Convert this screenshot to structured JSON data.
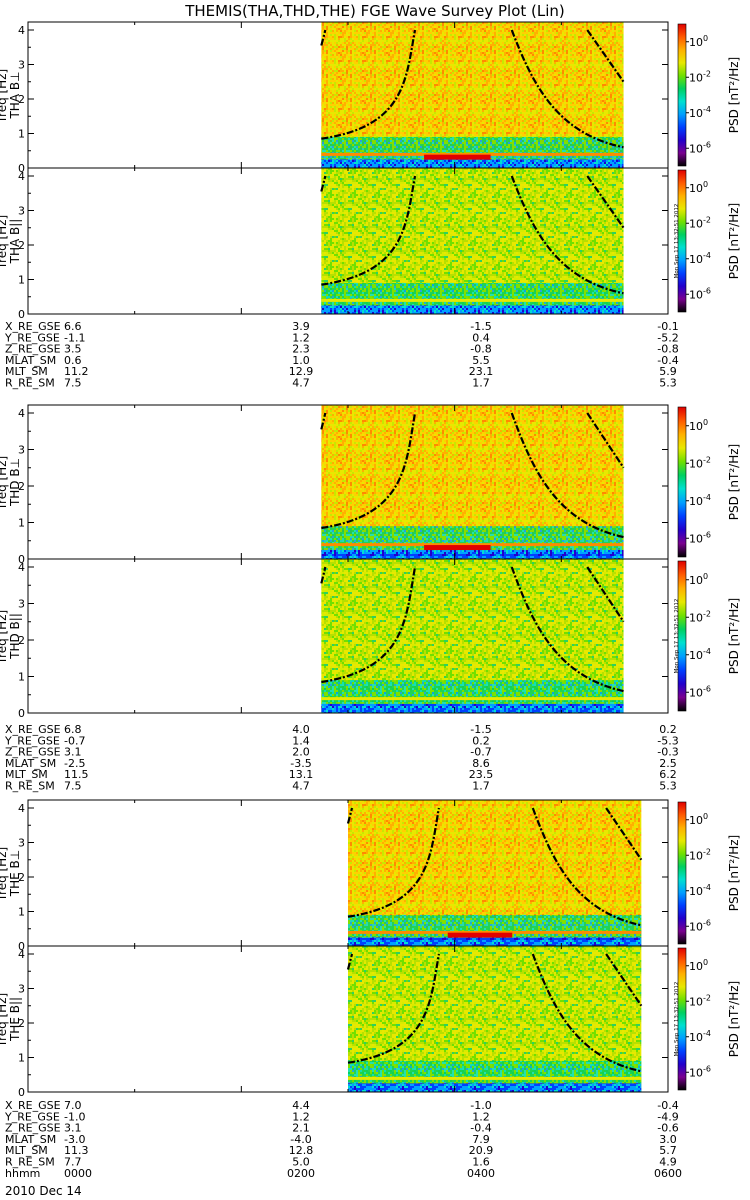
{
  "title": "THEMIS(THA,THD,THE) FGE Wave Survey Plot (Lin)",
  "colors": {
    "ramp": [
      "#000000",
      "#7a0090",
      "#2200cc",
      "#0040ff",
      "#00a0ff",
      "#00e0d0",
      "#00d060",
      "#70e000",
      "#e8e800",
      "#ffb000",
      "#ff5a00",
      "#e00000"
    ]
  },
  "colorbar": {
    "label": "PSD [nT²/Hz]",
    "ticks": [
      {
        "base": "10",
        "exp": "0",
        "value": 0
      },
      {
        "base": "10",
        "exp": "-2",
        "value": -2
      },
      {
        "base": "10",
        "exp": "-4",
        "value": -4
      },
      {
        "base": "10",
        "exp": "-6",
        "value": -6
      }
    ],
    "range": [
      -7,
      1
    ],
    "stamp": "Mon Sep 17 13:32:51 2012"
  },
  "chart_data": [
    {
      "type": "heatmap",
      "probe": "THA",
      "component": "THA B⊥",
      "ylabel": "freq [Hz]",
      "ylim": [
        0,
        4
      ],
      "yticks": [
        "0",
        "1",
        "2",
        "3",
        "4"
      ],
      "x_data_range": [
        "0245",
        "0535"
      ],
      "level": "strong"
    },
    {
      "type": "heatmap",
      "probe": "THA",
      "component": "THA B||",
      "ylabel": "freq [Hz]",
      "ylim": [
        0,
        4
      ],
      "yticks": [
        "0",
        "1",
        "2",
        "3",
        "4"
      ],
      "x_data_range": [
        "0245",
        "0535"
      ],
      "level": "weak"
    },
    {
      "type": "heatmap",
      "probe": "THD",
      "component": "THD B⊥",
      "ylabel": "freq [Hz]",
      "ylim": [
        0,
        4
      ],
      "yticks": [
        "0",
        "1",
        "2",
        "3",
        "4"
      ],
      "x_data_range": [
        "0245",
        "0535"
      ],
      "level": "strong"
    },
    {
      "type": "heatmap",
      "probe": "THD",
      "component": "THD B||",
      "ylabel": "freq [Hz]",
      "ylim": [
        0,
        4
      ],
      "yticks": [
        "0",
        "1",
        "2",
        "3",
        "4"
      ],
      "x_data_range": [
        "0245",
        "0535"
      ],
      "level": "weak"
    },
    {
      "type": "heatmap",
      "probe": "THE",
      "component": "THE B⊥",
      "ylabel": "freq [Hz]",
      "ylim": [
        0,
        4
      ],
      "yticks": [
        "0",
        "1",
        "2",
        "3",
        "4"
      ],
      "x_data_range": [
        "0300",
        "0545"
      ],
      "level": "strong"
    },
    {
      "type": "heatmap",
      "probe": "THE",
      "component": "THE B||",
      "ylabel": "freq [Hz]",
      "ylim": [
        0,
        4
      ],
      "yticks": [
        "0",
        "1",
        "2",
        "3",
        "4"
      ],
      "x_data_range": [
        "0300",
        "0545"
      ],
      "level": "weak"
    }
  ],
  "ephemeris_blocks": [
    {
      "rows": [
        {
          "label": "X_RE_GSE",
          "values": [
            "6.6",
            "3.9",
            "-1.5",
            "-0.1"
          ]
        },
        {
          "label": "Y_RE_GSE",
          "values": [
            "-1.1",
            "1.2",
            "0.4",
            "-5.2"
          ]
        },
        {
          "label": "Z_RE_GSE",
          "values": [
            "3.5",
            "2.3",
            "-0.8",
            "-0.8"
          ]
        },
        {
          "label": "MLAT_SM",
          "values": [
            "0.6",
            "1.0",
            "5.5",
            "-0.4"
          ]
        },
        {
          "label": "MLT_SM",
          "values": [
            "11.2",
            "12.9",
            "23.1",
            "5.9"
          ]
        },
        {
          "label": "R_RE_SM",
          "values": [
            "7.5",
            "4.7",
            "1.7",
            "5.3"
          ]
        }
      ]
    },
    {
      "rows": [
        {
          "label": "X_RE_GSE",
          "values": [
            "6.8",
            "4.0",
            "-1.5",
            "0.2"
          ]
        },
        {
          "label": "Y_RE_GSE",
          "values": [
            "-0.7",
            "1.4",
            "0.2",
            "-5.3"
          ]
        },
        {
          "label": "Z_RE_GSE",
          "values": [
            "3.1",
            "2.0",
            "-0.7",
            "-0.3"
          ]
        },
        {
          "label": "MLAT_SM",
          "values": [
            "-2.5",
            "-3.5",
            "8.6",
            "2.5"
          ]
        },
        {
          "label": "MLT_SM",
          "values": [
            "11.5",
            "13.1",
            "23.5",
            "6.2"
          ]
        },
        {
          "label": "R_RE_SM",
          "values": [
            "7.5",
            "4.7",
            "1.7",
            "5.3"
          ]
        }
      ]
    },
    {
      "rows": [
        {
          "label": "X_RE_GSE",
          "values": [
            "7.0",
            "4.4",
            "-1.0",
            "-0.4"
          ]
        },
        {
          "label": "Y_RE_GSE",
          "values": [
            "-1.0",
            "1.2",
            "1.2",
            "-4.9"
          ]
        },
        {
          "label": "Z_RE_GSE",
          "values": [
            "3.1",
            "2.1",
            "-0.4",
            "-0.6"
          ]
        },
        {
          "label": "MLAT_SM",
          "values": [
            "-3.0",
            "-4.0",
            "7.9",
            "3.0"
          ]
        },
        {
          "label": "MLT_SM",
          "values": [
            "11.3",
            "12.8",
            "20.9",
            "5.7"
          ]
        },
        {
          "label": "R_RE_SM",
          "values": [
            "7.7",
            "5.0",
            "1.6",
            "4.9"
          ]
        },
        {
          "label": "hhmm",
          "values": [
            "0000",
            "0200",
            "0400",
            "0600"
          ]
        }
      ]
    }
  ],
  "date": "2010 Dec 14"
}
